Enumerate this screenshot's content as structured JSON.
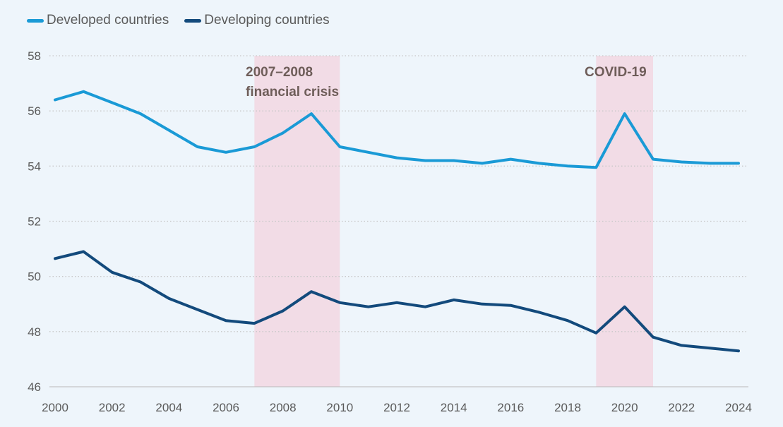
{
  "chart_data": {
    "type": "line",
    "title": "",
    "xlabel": "",
    "ylabel": "",
    "x": [
      2000,
      2001,
      2002,
      2003,
      2004,
      2005,
      2006,
      2007,
      2008,
      2009,
      2010,
      2011,
      2012,
      2013,
      2014,
      2015,
      2016,
      2017,
      2018,
      2019,
      2020,
      2021,
      2022,
      2023,
      2024
    ],
    "xlim": [
      2000,
      2024
    ],
    "ylim": [
      46,
      58
    ],
    "x_ticks": [
      "2000",
      "2002",
      "2004",
      "2006",
      "2008",
      "2010",
      "2012",
      "2014",
      "2016",
      "2018",
      "2020",
      "2022",
      "2024"
    ],
    "y_ticks": [
      "46",
      "48",
      "50",
      "52",
      "54",
      "56",
      "58"
    ],
    "grid": "horizontal dotted",
    "legend_position": "top-left",
    "series": [
      {
        "name": "Developed countries",
        "color": "#1a9ad6",
        "values": [
          56.4,
          56.7,
          56.3,
          55.9,
          55.3,
          54.7,
          54.5,
          54.7,
          55.2,
          55.9,
          54.7,
          54.5,
          54.3,
          54.2,
          54.2,
          54.1,
          54.25,
          54.1,
          54.0,
          53.95,
          55.9,
          54.25,
          54.15,
          54.1,
          54.1
        ]
      },
      {
        "name": "Developing countries",
        "color": "#134a7c",
        "values": [
          50.65,
          50.9,
          50.15,
          49.8,
          49.2,
          48.8,
          48.4,
          48.3,
          48.75,
          49.45,
          49.05,
          48.9,
          49.05,
          48.9,
          49.15,
          49.0,
          48.95,
          48.7,
          48.4,
          47.95,
          48.9,
          47.8,
          47.5,
          47.4,
          47.3
        ]
      }
    ],
    "shaded_periods": [
      {
        "label_lines": [
          "2007–2008",
          "financial crisis"
        ],
        "x_range": [
          2007,
          2010
        ],
        "color": "#f2dce6"
      },
      {
        "label_lines": [
          "COVID-19"
        ],
        "x_range": [
          2019,
          2021
        ],
        "color": "#f2dce6"
      }
    ],
    "colors": {
      "gridline": "#c8c8c8",
      "axis_text": "#5a5a5a",
      "annotation_text": "#6e5d59",
      "background": "#eef5fb"
    }
  }
}
